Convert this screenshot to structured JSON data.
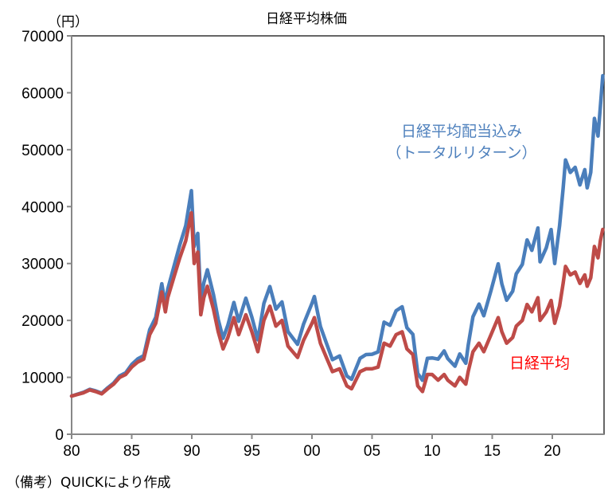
{
  "chart_data": {
    "type": "line",
    "title": "日経平均株価",
    "ylabel": "（円）",
    "xlabel": "",
    "xlim": [
      1980,
      2024.3
    ],
    "ylim": [
      0,
      70000
    ],
    "grid": false,
    "x_ticks": [
      1980,
      1985,
      1990,
      1995,
      2000,
      2005,
      2010,
      2015,
      2020
    ],
    "x_tick_labels": [
      "80",
      "85",
      "90",
      "95",
      "00",
      "05",
      "10",
      "15",
      "20"
    ],
    "y_ticks": [
      0,
      10000,
      20000,
      30000,
      40000,
      50000,
      60000,
      70000
    ],
    "y_tick_labels": [
      "0",
      "10000",
      "20000",
      "30000",
      "40000",
      "50000",
      "60000",
      "70000"
    ],
    "x": [
      1980.0,
      1980.5,
      1981.0,
      1981.5,
      1982.0,
      1982.5,
      1983.0,
      1983.5,
      1984.0,
      1984.5,
      1985.0,
      1985.5,
      1986.0,
      1986.5,
      1987.0,
      1987.5,
      1987.8,
      1988.0,
      1988.5,
      1989.0,
      1989.5,
      1989.97,
      1990.2,
      1990.5,
      1990.75,
      1991.0,
      1991.3,
      1991.8,
      1992.2,
      1992.6,
      1993.0,
      1993.5,
      1993.9,
      1994.5,
      1995.0,
      1995.5,
      1996.0,
      1996.5,
      1997.0,
      1997.5,
      1998.0,
      1998.8,
      1999.3,
      2000.0,
      2000.2,
      2000.7,
      2001.2,
      2001.7,
      2002.3,
      2002.9,
      2003.3,
      2004.0,
      2004.5,
      2005.0,
      2005.5,
      2006.0,
      2006.5,
      2007.0,
      2007.5,
      2007.9,
      2008.4,
      2008.8,
      2009.2,
      2009.6,
      2010.0,
      2010.5,
      2011.0,
      2011.3,
      2011.9,
      2012.3,
      2012.8,
      2013.0,
      2013.4,
      2013.9,
      2014.3,
      2014.9,
      2015.5,
      2015.8,
      2016.2,
      2016.7,
      2017.0,
      2017.5,
      2017.9,
      2018.3,
      2018.8,
      2018.98,
      2019.5,
      2019.9,
      2020.2,
      2020.6,
      2020.9,
      2021.1,
      2021.5,
      2021.9,
      2022.3,
      2022.7,
      2022.9,
      2023.2,
      2023.5,
      2023.8,
      2024.0,
      2024.2
    ],
    "series": [
      {
        "name": "日経平均配当込み（トータルリターン）",
        "color": "#4a7ebb",
        "values": [
          6700,
          7050,
          7380,
          7900,
          7620,
          7230,
          8160,
          9000,
          10260,
          10800,
          12270,
          13250,
          13800,
          18380,
          20550,
          26450,
          22800,
          25500,
          29350,
          33250,
          36650,
          42800,
          33000,
          35300,
          23250,
          26600,
          28900,
          24550,
          20150,
          16850,
          19150,
          23150,
          19850,
          23900,
          20550,
          16600,
          23000,
          25950,
          22000,
          23250,
          18050,
          15800,
          19350,
          23000,
          24200,
          18950,
          16030,
          13100,
          13760,
          10230,
          9660,
          13340,
          14000,
          14050,
          14480,
          19700,
          19140,
          21700,
          22400,
          18720,
          17550,
          10700,
          9480,
          13330,
          13410,
          13200,
          14650,
          13300,
          11950,
          14110,
          12470,
          15620,
          20650,
          22880,
          20820,
          25270,
          29950,
          26400,
          23550,
          25130,
          28200,
          29840,
          34150,
          32310,
          36240,
          30300,
          32740,
          35960,
          30000,
          36600,
          43200,
          48200,
          46000,
          46900,
          43800,
          46500,
          43300,
          46000,
          55500,
          52400,
          57600,
          63000
        ]
      },
      {
        "name": "日経平均",
        "color": "#be4b48",
        "values": [
          6700,
          7000,
          7300,
          7800,
          7500,
          7100,
          8000,
          8800,
          10000,
          10500,
          11800,
          12700,
          13200,
          17500,
          19500,
          25000,
          21500,
          24000,
          27500,
          31000,
          34000,
          38900,
          30000,
          32000,
          21000,
          24000,
          26000,
          22000,
          18000,
          15000,
          17000,
          20500,
          17500,
          21000,
          18000,
          14500,
          20000,
          22500,
          19000,
          20000,
          15500,
          13500,
          16500,
          19500,
          20500,
          16000,
          13500,
          11000,
          11500,
          8500,
          8000,
          11000,
          11500,
          11500,
          11800,
          16000,
          15500,
          17500,
          18000,
          15000,
          14000,
          8500,
          7500,
          10500,
          10500,
          9500,
          10500,
          9500,
          8500,
          10000,
          8800,
          11000,
          14500,
          16000,
          14500,
          17500,
          20500,
          18000,
          16000,
          17000,
          19000,
          20000,
          22800,
          21500,
          24000,
          20000,
          21500,
          23500,
          19500,
          22500,
          26500,
          29500,
          28000,
          28500,
          26500,
          28000,
          26000,
          27500,
          33000,
          31000,
          34000,
          36000
        ]
      }
    ],
    "annotations": {
      "total_return_line1": "日経平均配当込み",
      "total_return_line2": "（トータルリターン）",
      "nikkei": "日経平均",
      "total_return_color": "#4f81bd",
      "nikkei_color": "#ff0000"
    }
  },
  "footnote": "（備考）QUICKにより作成"
}
